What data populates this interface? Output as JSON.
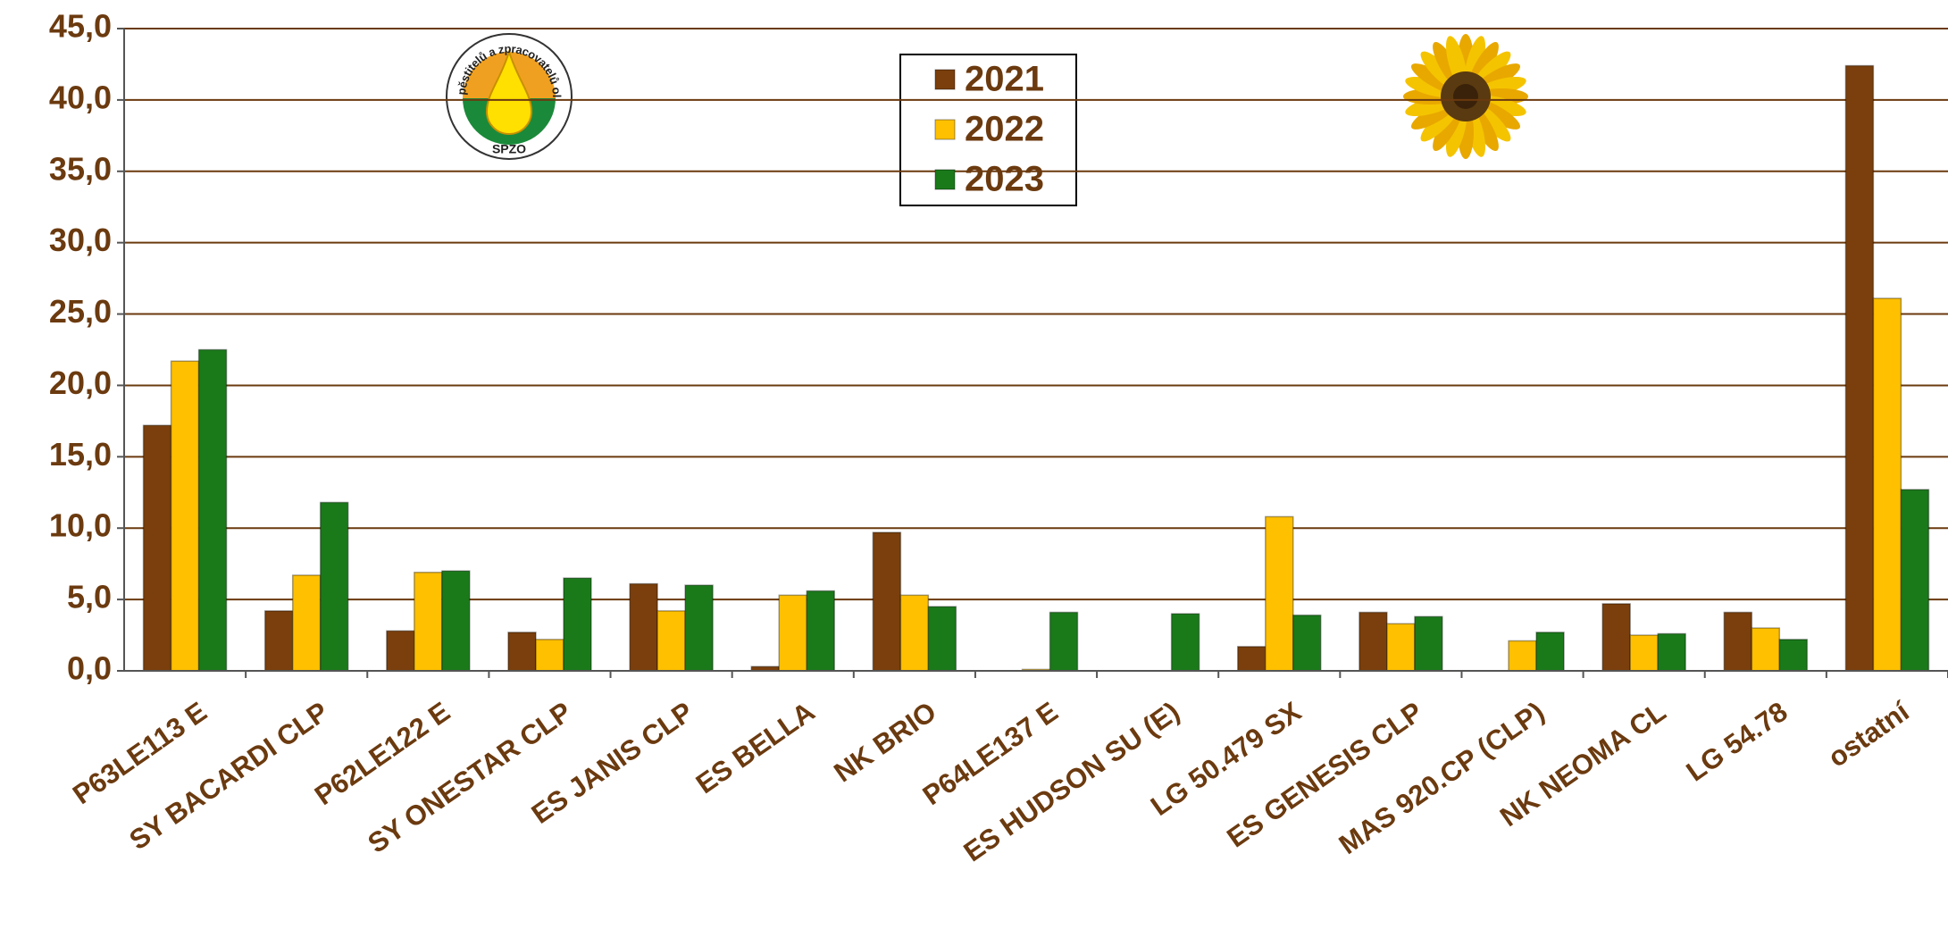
{
  "chart_data": {
    "type": "bar",
    "logo": {
      "text": "Svaz pěstitelů a zpracovatelů olejnin",
      "abbr": "SPZO"
    },
    "categories": [
      "P63LE113 E",
      "SY BACARDI CLP",
      "P62LE122 E",
      "SY ONESTAR CLP",
      "ES JANIS CLP",
      "ES BELLA",
      "NK BRIO",
      "P64LE137 E",
      "ES HUDSON SU (E)",
      "LG 50.479 SX",
      "ES GENESIS CLP",
      "MAS 920.CP (CLP)",
      "NK NEOMA CL",
      "LG 54.78",
      "ostatní"
    ],
    "series": [
      {
        "name": "2021",
        "color": "#7a3f0c",
        "values": [
          17.2,
          4.2,
          2.8,
          2.7,
          6.1,
          0.3,
          9.7,
          0,
          0,
          1.7,
          4.1,
          0,
          4.7,
          4.1,
          42.4
        ]
      },
      {
        "name": "2022",
        "color": "#ffc000",
        "values": [
          21.7,
          6.7,
          6.9,
          2.2,
          4.2,
          5.3,
          5.3,
          0.1,
          0,
          10.8,
          3.3,
          2.1,
          2.5,
          3.0,
          26.1
        ]
      },
      {
        "name": "2023",
        "color": "#1a7a1a",
        "values": [
          22.5,
          11.8,
          7.0,
          6.5,
          6.0,
          5.6,
          4.5,
          4.1,
          4.0,
          3.9,
          3.8,
          2.7,
          2.6,
          2.2,
          12.7
        ]
      }
    ],
    "ylim": [
      0,
      45
    ],
    "yticks": [
      {
        "value": 0,
        "label": "0,0"
      },
      {
        "value": 5,
        "label": "5,0"
      },
      {
        "value": 10,
        "label": "10,0"
      },
      {
        "value": 15,
        "label": "15,0"
      },
      {
        "value": 20,
        "label": "20,0"
      },
      {
        "value": 25,
        "label": "25,0"
      },
      {
        "value": 30,
        "label": "30,0"
      },
      {
        "value": 35,
        "label": "35,0"
      },
      {
        "value": 40,
        "label": "40,0"
      },
      {
        "value": 45,
        "label": "45,0"
      }
    ],
    "grid": true
  }
}
